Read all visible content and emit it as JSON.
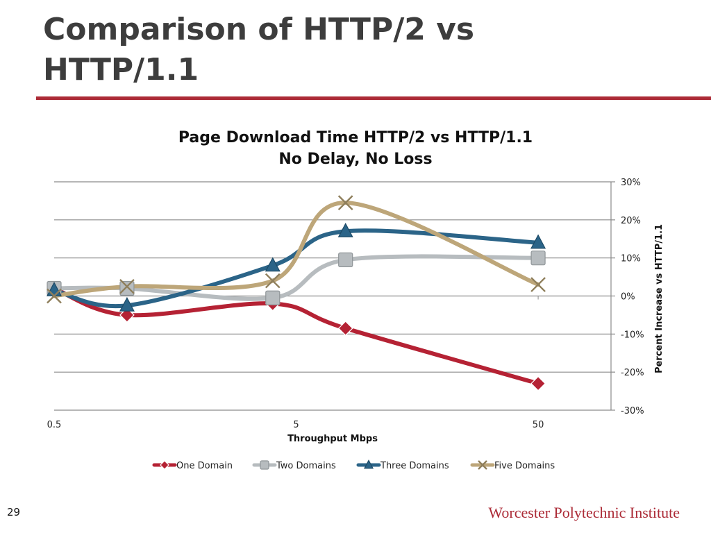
{
  "slide": {
    "title_line1": "Comparison of HTTP/2 vs",
    "title_line2": "HTTP/1.1",
    "page_number": "29",
    "footer": "Worcester Polytechnic Institute"
  },
  "colors": {
    "accent": "#ac2b37",
    "title": "#3d3d3d",
    "gridline": "#888888"
  },
  "chart_data": {
    "type": "line",
    "title_line1": "Page Download Time HTTP/2 vs HTTP/1.1",
    "title_line2": "No Delay, No Loss",
    "xlabel": "Throughput Mbps",
    "ylabel": "Percent Increase vs HTTP/1.1",
    "x_scale": "log",
    "x_ticks": [
      {
        "value": 0.5,
        "label": "0.5"
      },
      {
        "value": 5,
        "label": "5"
      },
      {
        "value": 50,
        "label": "50"
      }
    ],
    "xlim": [
      0.5,
      100
    ],
    "ylim": [
      -30,
      30
    ],
    "y_ticks": [
      {
        "value": 30,
        "label": "30%"
      },
      {
        "value": 20,
        "label": "20%"
      },
      {
        "value": 10,
        "label": "10%"
      },
      {
        "value": 0,
        "label": "0%"
      },
      {
        "value": -10,
        "label": "-10%"
      },
      {
        "value": -20,
        "label": "-20%"
      },
      {
        "value": -30,
        "label": "-30%"
      }
    ],
    "y_axis_side": "right",
    "grid": true,
    "x": [
      0.5,
      1,
      4,
      8,
      50
    ],
    "legend_position": "bottom",
    "series": [
      {
        "name": "One Domain",
        "marker": "diamond",
        "color": "#b52234",
        "values": [
          2,
          -5,
          -2,
          -8.5,
          -23
        ]
      },
      {
        "name": "Two Domains",
        "marker": "square",
        "color": "#b7bcbf",
        "values": [
          2,
          2,
          -0.5,
          9.5,
          10
        ]
      },
      {
        "name": "Three Domains",
        "marker": "triangle",
        "color": "#2b6488",
        "values": [
          1.5,
          -2.5,
          8,
          17,
          14
        ]
      },
      {
        "name": "Five Domains",
        "marker": "x",
        "color": "#bda679",
        "values": [
          0,
          2.5,
          4,
          24.5,
          3
        ]
      }
    ]
  }
}
